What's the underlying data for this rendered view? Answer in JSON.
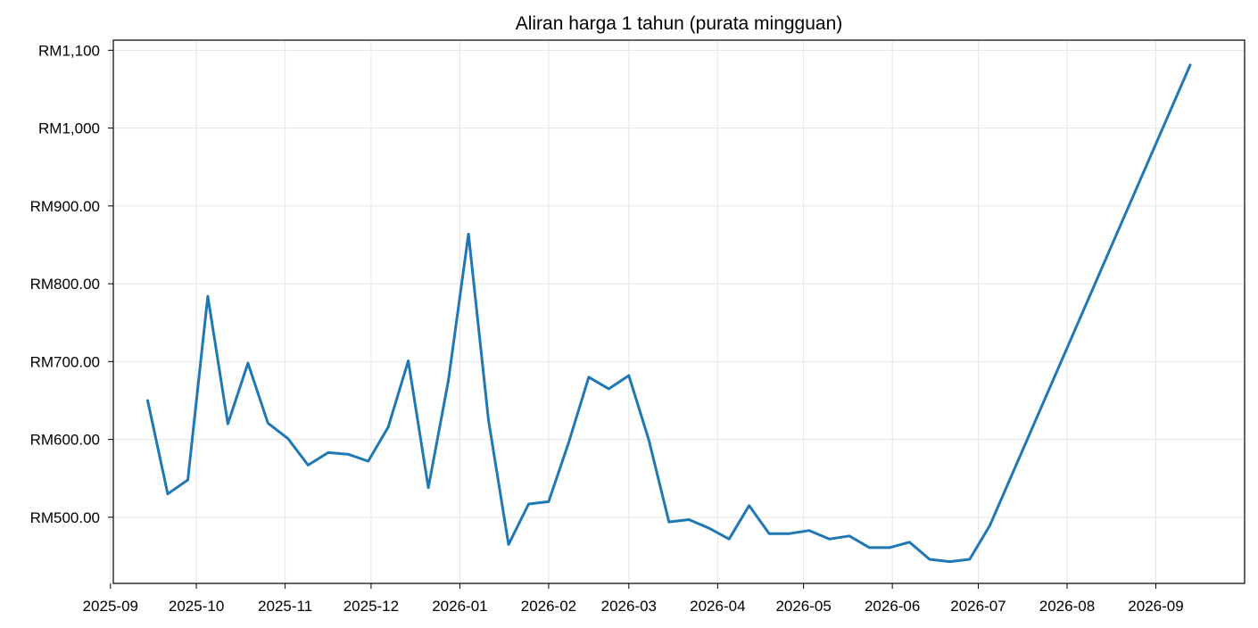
{
  "chart_data": {
    "type": "line",
    "title": "Aliran harga 1 tahun (purata mingguan)",
    "xlabel": "",
    "ylabel": "",
    "grid": true,
    "xlim": [
      "2025-09-02",
      "2026-10-02"
    ],
    "ylim": [
      415,
      1113
    ],
    "x_ticks": [
      "2025-09-01",
      "2025-10-01",
      "2025-11-01",
      "2025-12-01",
      "2026-01-01",
      "2026-02-01",
      "2026-03-01",
      "2026-04-01",
      "2026-05-01",
      "2026-06-01",
      "2026-07-01",
      "2026-08-01",
      "2026-09-01"
    ],
    "x_tick_labels": [
      "2025-09",
      "2025-10",
      "2025-11",
      "2025-12",
      "2026-01",
      "2026-02",
      "2026-03",
      "2026-04",
      "2026-05",
      "2026-06",
      "2026-07",
      "2026-08",
      "2026-09"
    ],
    "y_ticks": [
      500,
      600,
      700,
      800,
      900,
      1000,
      1100
    ],
    "y_tick_labels": [
      "RM500.00",
      "RM600.00",
      "RM700.00",
      "RM800.00",
      "RM900.00",
      "RM1,000",
      "RM1,100"
    ],
    "series": [
      {
        "name": "",
        "color": "#1f77b4",
        "x": [
          "2025-09-14",
          "2025-09-21",
          "2025-09-28",
          "2025-10-05",
          "2025-10-12",
          "2025-10-19",
          "2025-10-26",
          "2025-11-02",
          "2025-11-09",
          "2025-11-16",
          "2025-11-23",
          "2025-11-30",
          "2025-12-07",
          "2025-12-14",
          "2025-12-21",
          "2025-12-28",
          "2026-01-04",
          "2026-01-11",
          "2026-01-18",
          "2026-01-25",
          "2026-02-01",
          "2026-02-08",
          "2026-02-15",
          "2026-02-22",
          "2026-03-01",
          "2026-03-08",
          "2026-03-15",
          "2026-03-22",
          "2026-03-29",
          "2026-04-05",
          "2026-04-12",
          "2026-04-19",
          "2026-04-26",
          "2026-05-03",
          "2026-05-10",
          "2026-05-17",
          "2026-05-24",
          "2026-05-31",
          "2026-06-07",
          "2026-06-14",
          "2026-06-21",
          "2026-06-28",
          "2026-07-05",
          "2026-09-13"
        ],
        "y": [
          650,
          530,
          548,
          784,
          620,
          698,
          621,
          601,
          567,
          583,
          581,
          572,
          616,
          701,
          538,
          676,
          864,
          625,
          465,
          517,
          520,
          596,
          680,
          665,
          682,
          599,
          494,
          497,
          486,
          472,
          515,
          479,
          479,
          483,
          472,
          476,
          461,
          461,
          468,
          446,
          443,
          446,
          489,
          1081
        ]
      }
    ]
  }
}
